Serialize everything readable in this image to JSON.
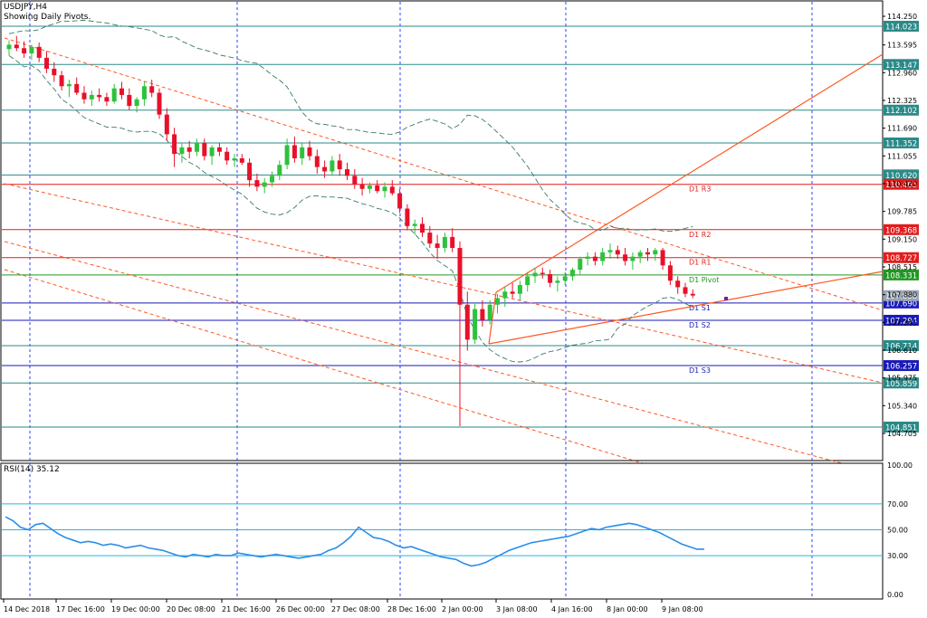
{
  "header": {
    "symbol": "USDJPY,H4",
    "subtitle": "Showing Daily Pivots."
  },
  "rsi_panel": {
    "label": "RSI(14) 35.12"
  },
  "colors": {
    "background": "#ffffff",
    "bull_candle": "#2ec23c",
    "bear_candle": "#e8102a",
    "bollinger": "#3a7a66",
    "trend_channel": "#ff5722",
    "pivot_resistance": "#e11d1d",
    "pivot_main": "#239623",
    "pivot_support": "#1a1ab8",
    "hline": "#2a8a88",
    "rsi_line": "#2a8ee8",
    "rsi_level": "#27b5e0",
    "grid_vertical": "#3040ff",
    "axis_text": "#000000",
    "price_tag_text": "#ffffff"
  },
  "chart_data": [
    {
      "type": "candlestick",
      "title": "USDJPY,H4",
      "ylim": [
        104.4,
        114.5
      ],
      "y_ticks": [
        "114.250",
        "113.595",
        "112.960",
        "112.325",
        "111.690",
        "111.055",
        "110.420",
        "109.785",
        "109.150",
        "108.515",
        "107.880",
        "107.245",
        "106.610",
        "105.975",
        "105.340",
        "104.705"
      ],
      "x_ticks": [
        "14 Dec 2018",
        "17 Dec 16:00",
        "19 Dec 00:00",
        "20 Dec 08:00",
        "21 Dec 16:00",
        "26 Dec 00:00",
        "27 Dec 08:00",
        "28 Dec 16:00",
        "2 Jan 00:00",
        "3 Jan 08:00",
        "4 Jan 16:00",
        "8 Jan 00:00",
        "9 Jan 08:00"
      ],
      "horizontal_levels": [
        {
          "price": 114.023,
          "label": "114.023",
          "kind": "hline"
        },
        {
          "price": 113.147,
          "label": "113.147",
          "kind": "hline"
        },
        {
          "price": 112.102,
          "label": "112.102",
          "kind": "hline"
        },
        {
          "price": 111.352,
          "label": "111.352",
          "kind": "hline"
        },
        {
          "price": 110.62,
          "label": "110.620",
          "kind": "hline"
        },
        {
          "price": 110.405,
          "label": "110.405",
          "kind": "pivot_resistance",
          "name": "D1  R3"
        },
        {
          "price": 109.368,
          "label": "109.368",
          "kind": "pivot_resistance",
          "name": "D1  R2"
        },
        {
          "price": 108.727,
          "label": "108.727",
          "kind": "pivot_resistance",
          "name": "D1  R1"
        },
        {
          "price": 108.331,
          "label": "108.331",
          "kind": "pivot_main",
          "name": "D1  Pivot"
        },
        {
          "price": 107.69,
          "label": "107.690",
          "kind": "pivot_support",
          "name": "D1  S1"
        },
        {
          "price": 107.294,
          "label": "107.294",
          "kind": "pivot_support",
          "name": "D1  S2"
        },
        {
          "price": 106.714,
          "label": "106.714",
          "kind": "hline"
        },
        {
          "price": 106.257,
          "label": "106.257",
          "kind": "pivot_support",
          "name": "D1  S3"
        },
        {
          "price": 105.859,
          "label": "105.859",
          "kind": "hline"
        },
        {
          "price": 104.851,
          "label": "104.851",
          "kind": "hline"
        }
      ],
      "current_price": {
        "price": 107.858,
        "label": "107.858"
      },
      "candles": [
        [
          113.5,
          113.7,
          113.35,
          113.6
        ],
        [
          113.6,
          113.8,
          113.45,
          113.52
        ],
        [
          113.52,
          113.68,
          113.3,
          113.4
        ],
        [
          113.4,
          113.6,
          113.25,
          113.55
        ],
        [
          113.55,
          113.65,
          113.2,
          113.3
        ],
        [
          113.3,
          113.45,
          112.95,
          113.05
        ],
        [
          113.05,
          113.2,
          112.75,
          112.9
        ],
        [
          112.9,
          113.0,
          112.55,
          112.65
        ],
        [
          112.65,
          112.8,
          112.4,
          112.7
        ],
        [
          112.7,
          112.85,
          112.45,
          112.5
        ],
        [
          112.5,
          112.65,
          112.25,
          112.35
        ],
        [
          112.35,
          112.55,
          112.2,
          112.45
        ],
        [
          112.45,
          112.6,
          112.3,
          112.4
        ],
        [
          112.4,
          112.5,
          112.2,
          112.3
        ],
        [
          112.3,
          112.7,
          112.25,
          112.6
        ],
        [
          112.6,
          112.75,
          112.35,
          112.45
        ],
        [
          112.45,
          112.6,
          112.1,
          112.2
        ],
        [
          112.2,
          112.4,
          112.05,
          112.35
        ],
        [
          112.35,
          112.75,
          112.2,
          112.65
        ],
        [
          112.65,
          112.8,
          112.4,
          112.5
        ],
        [
          112.5,
          112.6,
          111.9,
          112.0
        ],
        [
          112.0,
          112.15,
          111.4,
          111.55
        ],
        [
          111.55,
          111.7,
          110.8,
          111.1
        ],
        [
          111.1,
          111.35,
          110.9,
          111.25
        ],
        [
          111.25,
          111.4,
          111.0,
          111.15
        ],
        [
          111.15,
          111.45,
          111.05,
          111.35
        ],
        [
          111.35,
          111.45,
          110.95,
          111.05
        ],
        [
          111.05,
          111.3,
          110.85,
          111.25
        ],
        [
          111.25,
          111.35,
          111.05,
          111.15
        ],
        [
          111.15,
          111.25,
          110.85,
          110.95
        ],
        [
          110.95,
          111.1,
          110.8,
          111.0
        ],
        [
          111.0,
          111.1,
          110.85,
          110.9
        ],
        [
          110.9,
          111.0,
          110.35,
          110.5
        ],
        [
          110.5,
          110.65,
          110.25,
          110.35
        ],
        [
          110.35,
          110.55,
          110.2,
          110.45
        ],
        [
          110.45,
          110.7,
          110.35,
          110.6
        ],
        [
          110.6,
          110.95,
          110.5,
          110.85
        ],
        [
          110.85,
          111.45,
          110.75,
          111.3
        ],
        [
          111.3,
          111.5,
          110.9,
          111.0
        ],
        [
          111.0,
          111.35,
          110.85,
          111.25
        ],
        [
          111.25,
          111.4,
          110.95,
          111.05
        ],
        [
          111.05,
          111.2,
          110.65,
          110.8
        ],
        [
          110.8,
          110.95,
          110.55,
          110.7
        ],
        [
          110.7,
          111.05,
          110.6,
          110.95
        ],
        [
          110.95,
          111.1,
          110.6,
          110.75
        ],
        [
          110.75,
          110.9,
          110.5,
          110.6
        ],
        [
          110.6,
          110.75,
          110.3,
          110.4
        ],
        [
          110.4,
          110.55,
          110.15,
          110.3
        ],
        [
          110.3,
          110.45,
          110.2,
          110.38
        ],
        [
          110.38,
          110.5,
          110.2,
          110.25
        ],
        [
          110.25,
          110.45,
          110.1,
          110.35
        ],
        [
          110.35,
          110.5,
          110.15,
          110.2
        ],
        [
          110.2,
          110.3,
          109.75,
          109.85
        ],
        [
          109.85,
          109.95,
          109.35,
          109.45
        ],
        [
          109.45,
          109.6,
          109.25,
          109.5
        ],
        [
          109.5,
          109.65,
          109.2,
          109.3
        ],
        [
          109.3,
          109.45,
          108.95,
          109.05
        ],
        [
          109.05,
          109.25,
          108.7,
          108.95
        ],
        [
          108.95,
          109.3,
          108.85,
          109.2
        ],
        [
          109.2,
          109.4,
          108.85,
          108.95
        ],
        [
          108.95,
          109.1,
          104.87,
          107.65
        ],
        [
          107.65,
          107.95,
          106.6,
          106.85
        ],
        [
          106.85,
          107.7,
          106.75,
          107.55
        ],
        [
          107.55,
          107.75,
          107.15,
          107.3
        ],
        [
          107.3,
          107.75,
          107.2,
          107.65
        ],
        [
          107.65,
          107.9,
          107.45,
          107.8
        ],
        [
          107.8,
          108.05,
          107.6,
          107.95
        ],
        [
          107.95,
          108.15,
          107.8,
          107.9
        ],
        [
          107.9,
          108.2,
          107.75,
          108.1
        ],
        [
          108.1,
          108.4,
          107.95,
          108.3
        ],
        [
          108.3,
          108.5,
          108.15,
          108.38
        ],
        [
          108.38,
          108.5,
          108.25,
          108.35
        ],
        [
          108.35,
          108.45,
          108.05,
          108.15
        ],
        [
          108.15,
          108.3,
          107.95,
          108.2
        ],
        [
          108.2,
          108.4,
          108.1,
          108.3
        ],
        [
          108.3,
          108.5,
          108.2,
          108.45
        ],
        [
          108.45,
          108.75,
          108.35,
          108.7
        ],
        [
          108.7,
          108.85,
          108.55,
          108.75
        ],
        [
          108.75,
          108.85,
          108.55,
          108.65
        ],
        [
          108.65,
          108.95,
          108.55,
          108.85
        ],
        [
          108.85,
          109.05,
          108.7,
          108.9
        ],
        [
          108.9,
          109.0,
          108.7,
          108.8
        ],
        [
          108.8,
          108.95,
          108.55,
          108.65
        ],
        [
          108.65,
          108.85,
          108.45,
          108.75
        ],
        [
          108.75,
          108.9,
          108.6,
          108.85
        ],
        [
          108.85,
          108.95,
          108.65,
          108.8
        ],
        [
          108.8,
          108.95,
          108.65,
          108.9
        ],
        [
          108.9,
          108.95,
          108.45,
          108.55
        ],
        [
          108.55,
          108.65,
          108.1,
          108.2
        ],
        [
          108.2,
          108.3,
          107.9,
          108.05
        ],
        [
          108.05,
          108.15,
          107.82,
          107.9
        ],
        [
          107.9,
          108.0,
          107.8,
          107.86
        ]
      ]
    },
    {
      "type": "line",
      "title": "RSI(14) 35.12",
      "ylim": [
        0,
        100
      ],
      "y_ticks": [
        "100.00",
        "70.00",
        "50.00",
        "30.00",
        "0.00"
      ],
      "levels": [
        70,
        50,
        30
      ],
      "values": [
        60,
        57,
        52,
        50,
        54,
        55,
        51,
        47,
        44,
        42,
        40,
        41,
        40,
        38,
        39,
        38,
        36,
        37,
        38,
        36,
        35,
        34,
        32,
        30,
        29,
        31,
        30,
        29,
        31,
        30,
        30,
        32,
        31,
        30,
        29,
        30,
        31,
        30,
        29,
        28,
        29,
        30,
        31,
        34,
        36,
        40,
        45,
        52,
        48,
        44,
        43,
        41,
        38,
        36,
        37,
        35,
        33,
        31,
        29,
        28,
        27,
        24,
        22,
        23,
        25,
        28,
        31,
        34,
        36,
        38,
        40,
        41,
        42,
        43,
        44,
        45,
        47,
        49,
        51,
        50,
        52,
        53,
        54,
        55,
        54,
        52,
        50,
        48,
        45,
        42,
        39,
        37,
        35,
        35
      ]
    }
  ]
}
